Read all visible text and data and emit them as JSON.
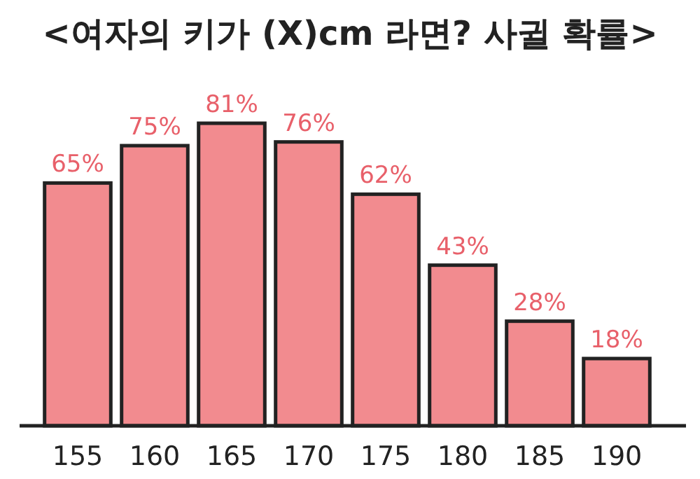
{
  "chart_data": {
    "type": "bar",
    "title": "<여자의 키가 (X)cm 라면? 사귈 확률>",
    "categories": [
      "155",
      "160",
      "165",
      "170",
      "175",
      "180",
      "185",
      "190"
    ],
    "values": [
      65,
      75,
      81,
      76,
      62,
      43,
      28,
      18
    ],
    "value_labels": [
      "65%",
      "75%",
      "81%",
      "76%",
      "62%",
      "43%",
      "28%",
      "18%"
    ],
    "color": "#f28b8f"
  }
}
